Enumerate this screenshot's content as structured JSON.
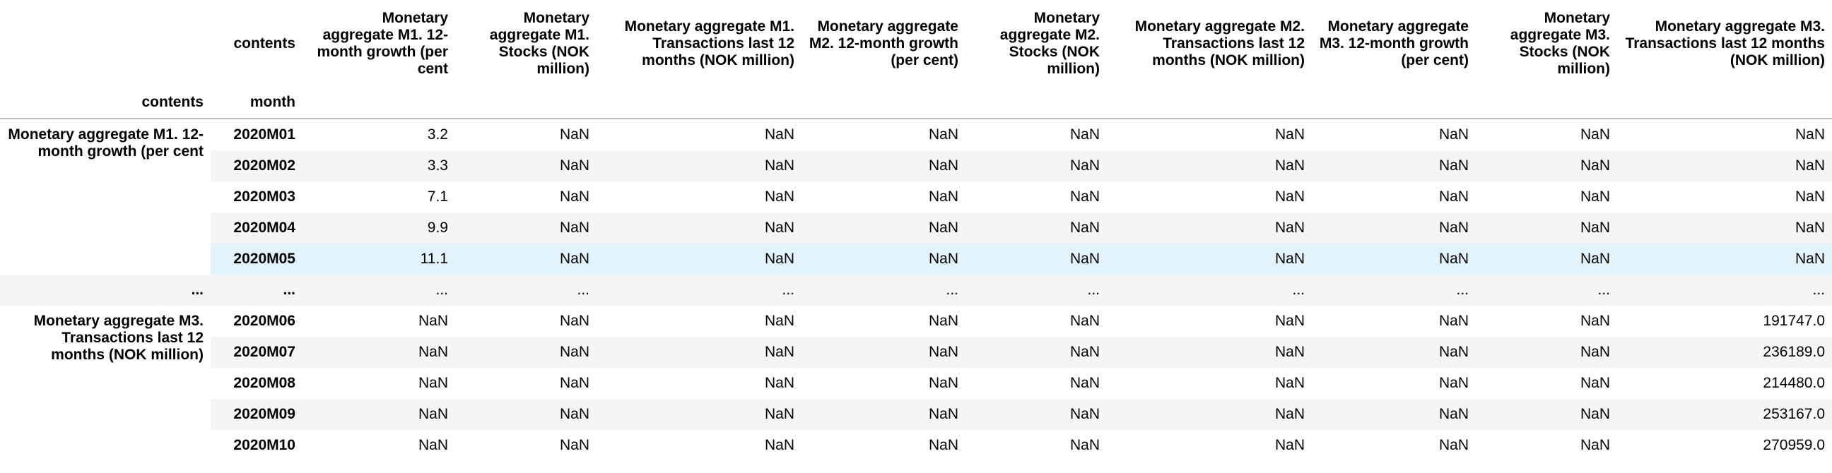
{
  "header": {
    "corner_label": "contents",
    "index_names": [
      "contents",
      "month"
    ],
    "columns": [
      "Monetary aggregate M1. 12-month growth (per cent",
      "Monetary aggregate M1. Stocks (NOK million)",
      "Monetary aggregate M1. Transactions last 12 months (NOK million)",
      "Monetary aggregate M2. 12-month growth (per cent)",
      "Monetary aggregate M2. Stocks (NOK million)",
      "Monetary aggregate M2. Transactions last 12 months (NOK million)",
      "Monetary aggregate M3. 12-month growth (per cent)",
      "Monetary aggregate M3. Stocks (NOK million)",
      "Monetary aggregate M3. Transactions last 12 months (NOK million)"
    ]
  },
  "groups": [
    {
      "label": "Monetary aggregate M1. 12-month growth (per cent",
      "rows": [
        {
          "month": "2020M01",
          "values": [
            "3.2",
            "NaN",
            "NaN",
            "NaN",
            "NaN",
            "NaN",
            "NaN",
            "NaN",
            "NaN"
          ]
        },
        {
          "month": "2020M02",
          "values": [
            "3.3",
            "NaN",
            "NaN",
            "NaN",
            "NaN",
            "NaN",
            "NaN",
            "NaN",
            "NaN"
          ]
        },
        {
          "month": "2020M03",
          "values": [
            "7.1",
            "NaN",
            "NaN",
            "NaN",
            "NaN",
            "NaN",
            "NaN",
            "NaN",
            "NaN"
          ]
        },
        {
          "month": "2020M04",
          "values": [
            "9.9",
            "NaN",
            "NaN",
            "NaN",
            "NaN",
            "NaN",
            "NaN",
            "NaN",
            "NaN"
          ]
        },
        {
          "month": "2020M05",
          "values": [
            "11.1",
            "NaN",
            "NaN",
            "NaN",
            "NaN",
            "NaN",
            "NaN",
            "NaN",
            "NaN"
          ]
        }
      ]
    },
    {
      "label": "...",
      "rows": [
        {
          "month": "...",
          "values": [
            "...",
            "...",
            "...",
            "...",
            "...",
            "...",
            "...",
            "...",
            "..."
          ]
        }
      ]
    },
    {
      "label": "Monetary aggregate M3. Transactions last 12 months (NOK million)",
      "rows": [
        {
          "month": "2020M06",
          "values": [
            "NaN",
            "NaN",
            "NaN",
            "NaN",
            "NaN",
            "NaN",
            "NaN",
            "NaN",
            "191747.0"
          ]
        },
        {
          "month": "2020M07",
          "values": [
            "NaN",
            "NaN",
            "NaN",
            "NaN",
            "NaN",
            "NaN",
            "NaN",
            "NaN",
            "236189.0"
          ]
        },
        {
          "month": "2020M08",
          "values": [
            "NaN",
            "NaN",
            "NaN",
            "NaN",
            "NaN",
            "NaN",
            "NaN",
            "NaN",
            "214480.0"
          ]
        },
        {
          "month": "2020M09",
          "values": [
            "NaN",
            "NaN",
            "NaN",
            "NaN",
            "NaN",
            "NaN",
            "NaN",
            "NaN",
            "253167.0"
          ]
        },
        {
          "month": "2020M10",
          "values": [
            "NaN",
            "NaN",
            "NaN",
            "NaN",
            "NaN",
            "NaN",
            "NaN",
            "NaN",
            "270959.0"
          ]
        }
      ]
    }
  ]
}
